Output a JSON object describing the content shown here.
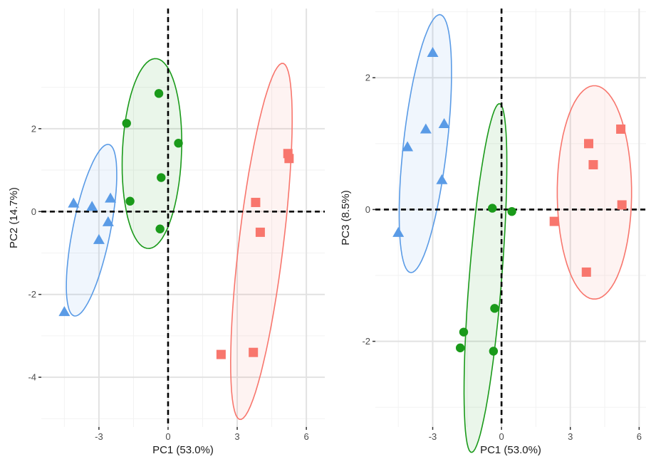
{
  "colors": {
    "red": "#f8766d",
    "green": "#1a9a1a",
    "blue": "#5a9be6",
    "grid_major": "#e2e2e2",
    "grid_minor": "#f2f2f2"
  },
  "chart_data": [
    {
      "type": "scatter",
      "xlabel": "PC1 (53.0%)",
      "ylabel": "PC2 (14.7%)",
      "xlim": [
        -5.5,
        6.8
      ],
      "ylim": [
        -5.2,
        4.9
      ],
      "xticks": [
        -3,
        0,
        3,
        6
      ],
      "yticks": [
        -4,
        -2,
        0,
        2
      ],
      "grid": true,
      "reference_lines": {
        "x": 0,
        "y": 0,
        "style": "dashed"
      },
      "series": [
        {
          "marker": "square",
          "color": "#f8766d",
          "points": [
            [
              5.2,
              1.4
            ],
            [
              5.25,
              1.28
            ],
            [
              3.8,
              0.22
            ],
            [
              4.0,
              -0.5
            ],
            [
              3.7,
              -3.4
            ],
            [
              2.3,
              -3.45
            ]
          ],
          "ellipse": {
            "center": [
              4.05,
              -0.72
            ],
            "angle_deg": 77.4,
            "rx": 4.4,
            "ry": 0.95
          }
        },
        {
          "marker": "circle",
          "color": "#1a9a1a",
          "points": [
            [
              -0.4,
              2.85
            ],
            [
              -1.8,
              2.13
            ],
            [
              0.45,
              1.65
            ],
            [
              -0.3,
              0.82
            ],
            [
              -1.65,
              0.25
            ],
            [
              -0.35,
              -0.42
            ]
          ],
          "ellipse": {
            "center": [
              -0.7,
              1.4
            ],
            "angle_deg": 84.5,
            "rx": 2.3,
            "ry": 1.28
          }
        },
        {
          "marker": "triangle",
          "color": "#5a9be6",
          "points": [
            [
              -4.1,
              0.2
            ],
            [
              -3.3,
              0.12
            ],
            [
              -2.5,
              0.32
            ],
            [
              -2.6,
              -0.25
            ],
            [
              -3.0,
              -0.68
            ],
            [
              -4.5,
              -2.42
            ]
          ],
          "ellipse": {
            "center": [
              -3.32,
              -0.45
            ],
            "angle_deg": 68.2,
            "rx": 2.21,
            "ry": 0.78
          }
        }
      ]
    },
    {
      "type": "scatter",
      "xlabel": "PC1 (53.0%)",
      "ylabel": "PC3 (8.5%)",
      "xlim": [
        -5.5,
        6.3
      ],
      "ylim": [
        -3.3,
        3.05
      ],
      "xticks": [
        -3,
        0,
        3,
        6
      ],
      "yticks": [
        -2,
        0,
        2
      ],
      "grid": true,
      "reference_lines": {
        "x": 0,
        "y": 0,
        "style": "dashed"
      },
      "series": [
        {
          "marker": "square",
          "color": "#f8766d",
          "points": [
            [
              5.2,
              1.22
            ],
            [
              3.8,
              1.0
            ],
            [
              4.0,
              0.68
            ],
            [
              5.25,
              0.07
            ],
            [
              2.3,
              -0.18
            ],
            [
              3.7,
              -0.95
            ]
          ],
          "ellipse": {
            "center": [
              4.05,
              0.26
            ],
            "angle_deg": 72.5,
            "rx": 1.62,
            "ry": 1.62
          }
        },
        {
          "marker": "circle",
          "color": "#1a9a1a",
          "points": [
            [
              -0.4,
              0.02
            ],
            [
              0.45,
              -0.03
            ],
            [
              -0.3,
              -1.5
            ],
            [
              -1.65,
              -1.86
            ],
            [
              -1.8,
              -2.1
            ],
            [
              -0.35,
              -2.15
            ]
          ],
          "ellipse": {
            "center": [
              -0.7,
              -1.04
            ],
            "angle_deg": 76.2,
            "rx": 2.72,
            "ry": 0.69
          }
        },
        {
          "marker": "triangle",
          "color": "#5a9be6",
          "points": [
            [
              -3.0,
              2.38
            ],
            [
              -2.5,
              1.3
            ],
            [
              -3.3,
              1.22
            ],
            [
              -4.1,
              0.95
            ],
            [
              -2.6,
              0.45
            ],
            [
              -4.5,
              -0.35
            ]
          ],
          "ellipse": {
            "center": [
              -3.32,
              1.0
            ],
            "angle_deg": 68.0,
            "rx": 2.08,
            "ry": 0.9
          }
        }
      ]
    }
  ]
}
